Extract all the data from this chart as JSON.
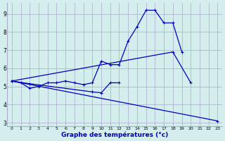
{
  "title": "Graphe des températures (°c)",
  "bg_color": "#d4eeee",
  "grid_color": "#aaaacc",
  "line_color": "#0000bb",
  "xlabel_color": "#0000bb",
  "x_hours": [
    0,
    1,
    2,
    3,
    4,
    5,
    6,
    7,
    8,
    9,
    10,
    11,
    12,
    13,
    14,
    15,
    16,
    17,
    18,
    19,
    20,
    21,
    22,
    23
  ],
  "curve_main": [
    5.3,
    5.2,
    4.9,
    5.0,
    5.2,
    5.2,
    5.3,
    5.2,
    5.1,
    5.2,
    6.4,
    6.2,
    6.2,
    7.5,
    8.3,
    9.2,
    9.2,
    8.5,
    8.5,
    6.9,
    null,
    null,
    null,
    null
  ],
  "curve_upper": [
    [
      0,
      5.3
    ],
    [
      18,
      6.9
    ],
    [
      20,
      5.2
    ]
  ],
  "curve_lower": [
    [
      0,
      5.3
    ],
    [
      23,
      3.1
    ]
  ],
  "curve_mid": [
    [
      0,
      5.3
    ],
    [
      2,
      5.15
    ],
    [
      9,
      4.7
    ],
    [
      10,
      4.65
    ],
    [
      11,
      5.2
    ],
    [
      12,
      5.2
    ]
  ],
  "ylim_min": 2.8,
  "ylim_max": 9.6,
  "yticks": [
    3,
    4,
    5,
    6,
    7,
    8,
    9
  ],
  "marker_size": 3,
  "lw": 0.9
}
